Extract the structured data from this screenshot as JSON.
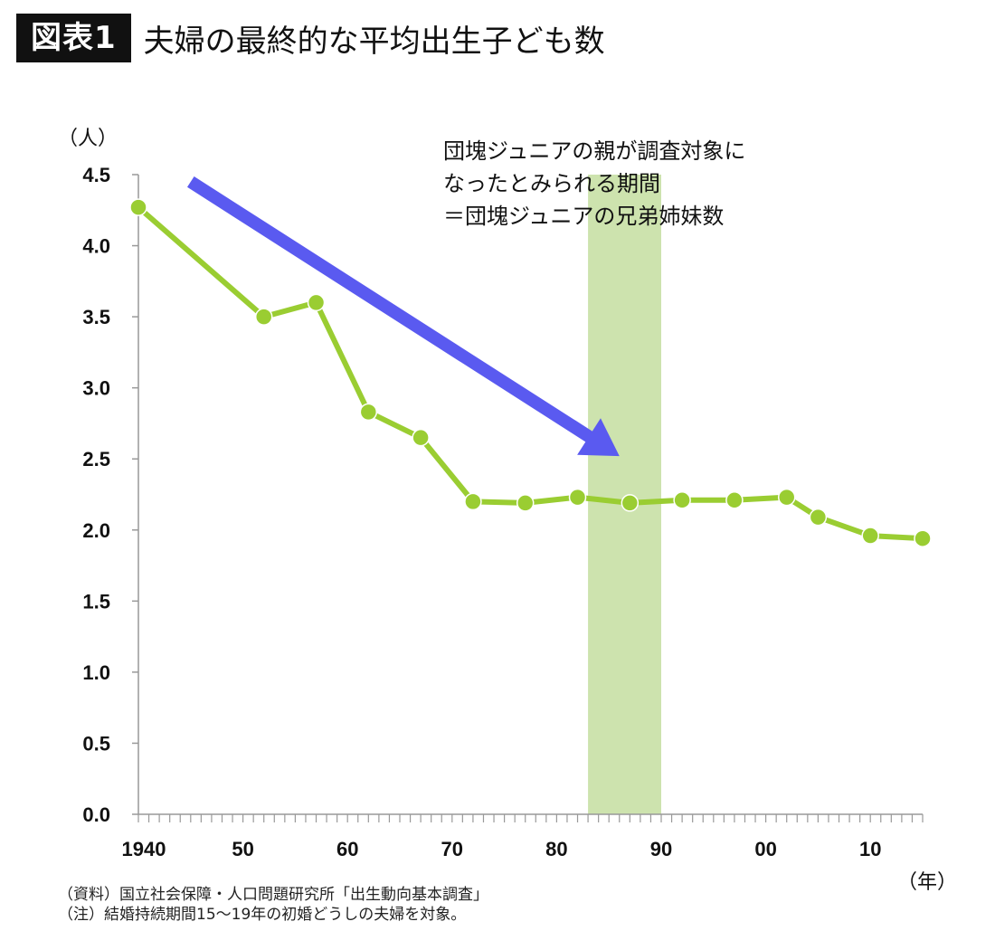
{
  "header": {
    "badge": "図表1",
    "title": "夫婦の最終的な平均出生子ども数"
  },
  "colors": {
    "line": "#9acd32",
    "arrow": "#5a5af0",
    "band": "#cde3ae",
    "axis": "#999999"
  },
  "chart_data": {
    "type": "line",
    "title": "",
    "ylabel": "（人）",
    "xlabel": "（年）",
    "ylim": [
      0,
      4.5
    ],
    "xlim": [
      1940,
      2015
    ],
    "y_ticks": [
      "0.0",
      "0.5",
      "1.0",
      "1.5",
      "2.0",
      "2.5",
      "3.0",
      "3.5",
      "4.0",
      "4.5"
    ],
    "x_ticks": [
      {
        "value": 1940,
        "label": "1940"
      },
      {
        "value": 1950,
        "label": "50"
      },
      {
        "value": 1960,
        "label": "60"
      },
      {
        "value": 1970,
        "label": "70"
      },
      {
        "value": 1980,
        "label": "80"
      },
      {
        "value": 1990,
        "label": "90"
      },
      {
        "value": 2000,
        "label": "00"
      },
      {
        "value": 2010,
        "label": "10"
      }
    ],
    "series": [
      {
        "x": [
          1940,
          1952,
          1957,
          1962,
          1967,
          1972,
          1977,
          1982,
          1987,
          1992,
          1997,
          2002,
          2005,
          2010,
          2015
        ],
        "values": [
          4.27,
          3.5,
          3.6,
          2.83,
          2.65,
          2.2,
          2.19,
          2.23,
          2.19,
          2.21,
          2.21,
          2.23,
          2.09,
          1.96,
          1.94
        ]
      }
    ],
    "highlight_band": {
      "x_range": [
        1983,
        1990
      ],
      "label_lines": [
        "団塊ジュニアの親が調査対象に",
        "なったとみられる期間",
        "＝団塊ジュニアの兄弟姉妹数"
      ]
    },
    "trend_arrow": {
      "from": {
        "x": 1945,
        "y": 4.45
      },
      "to": {
        "x": 1986,
        "y": 2.52
      }
    }
  },
  "footnotes": {
    "source": "（資料）国立社会保障・人口問題研究所「出生動向基本調査」",
    "note": "（注）結婚持続期間15～19年の初婚どうしの夫婦を対象。"
  }
}
